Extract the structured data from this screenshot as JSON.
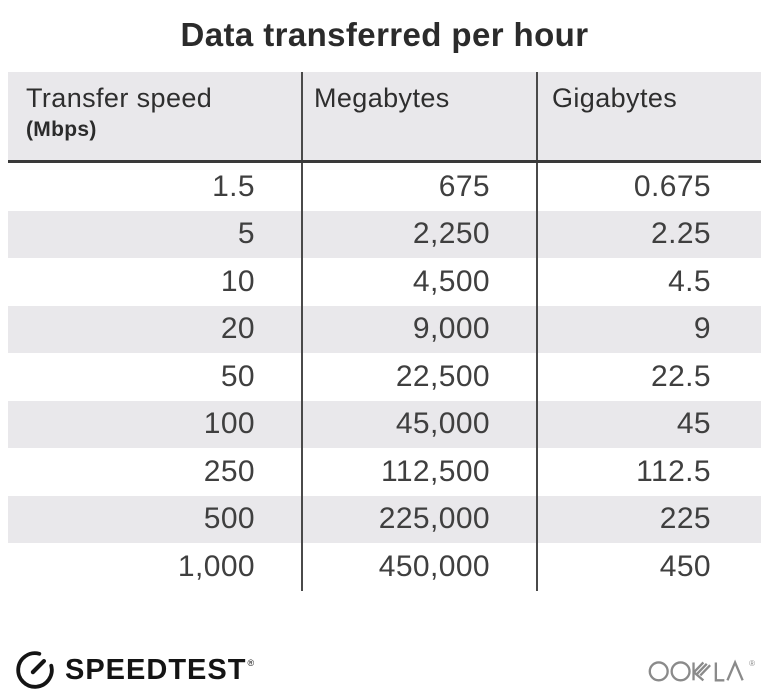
{
  "title": "Data transferred per hour",
  "table": {
    "columns": [
      {
        "label": "Transfer speed",
        "unit": "(Mbps)"
      },
      {
        "label": "Megabytes"
      },
      {
        "label": "Gigabytes"
      }
    ],
    "rows": [
      [
        "1.5",
        "675",
        "0.675"
      ],
      [
        "5",
        "2,250",
        "2.25"
      ],
      [
        "10",
        "4,500",
        "4.5"
      ],
      [
        "20",
        "9,000",
        "9"
      ],
      [
        "50",
        "22,500",
        "22.5"
      ],
      [
        "100",
        "45,000",
        "45"
      ],
      [
        "250",
        "112,500",
        "112.5"
      ],
      [
        "500",
        "225,000",
        "225"
      ],
      [
        "1,000",
        "450,000",
        "450"
      ]
    ]
  },
  "footer": {
    "speedtest_label": "SPEEDTEST",
    "speedtest_trademark": "®",
    "speedtest_icon": "speedometer-gauge-icon",
    "ookla_label": "OOKLA",
    "ookla_trademark": "®",
    "ookla_icon": "ookla-wordmark-icon"
  },
  "colors": {
    "background": "#ffffff",
    "row_shade": "#e9e8eb",
    "header_bg": "#e9e8eb",
    "divider": "#4a4a4a",
    "header_underline": "#3a3a3a",
    "title_text": "#2b2b2b",
    "cell_text": "#3f3f3f",
    "speedtest_black": "#141414",
    "ookla_gray": "#8a8a8a"
  },
  "chart_data": {
    "type": "table",
    "title": "Data transferred per hour",
    "columns": [
      "Transfer speed (Mbps)",
      "Megabytes",
      "Gigabytes"
    ],
    "rows": [
      [
        1.5,
        675,
        0.675
      ],
      [
        5,
        2250,
        2.25
      ],
      [
        10,
        4500,
        4.5
      ],
      [
        20,
        9000,
        9
      ],
      [
        50,
        22500,
        22.5
      ],
      [
        100,
        45000,
        45
      ],
      [
        250,
        112500,
        112.5
      ],
      [
        500,
        225000,
        225
      ],
      [
        1000,
        450000,
        450
      ]
    ]
  }
}
